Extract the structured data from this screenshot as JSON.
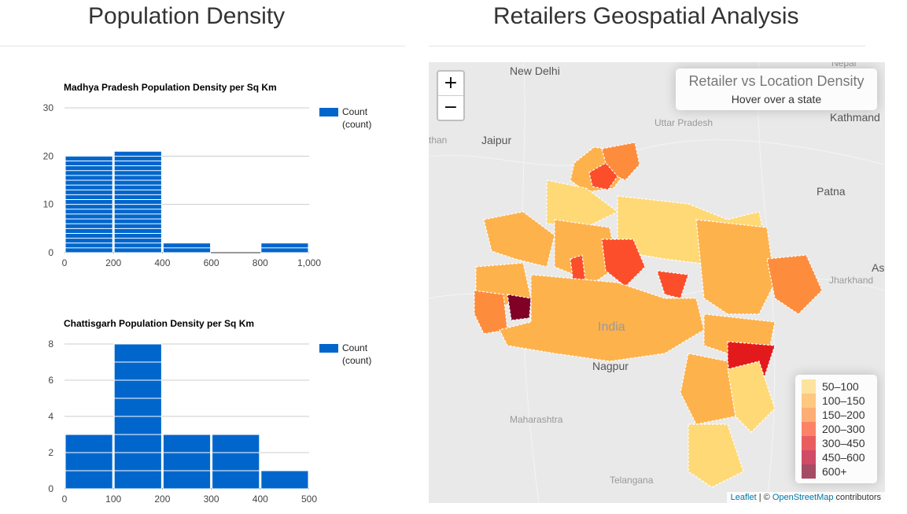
{
  "left_title": "Population Density",
  "right_title": "Retailers Geospatial Analysis",
  "chart_data": [
    {
      "type": "bar",
      "title": "Madhya Pradesh Population Density per Sq Km",
      "bins": [
        [
          0,
          200
        ],
        [
          200,
          400
        ],
        [
          400,
          600
        ],
        [
          600,
          800
        ],
        [
          800,
          1000
        ]
      ],
      "values": [
        20,
        21,
        2,
        0,
        2
      ],
      "xticks": [
        "0",
        "200",
        "400",
        "600",
        "800",
        "1,000"
      ],
      "yticks": [
        "0",
        "10",
        "20",
        "30"
      ],
      "xlim": [
        0,
        1000
      ],
      "ylim": [
        0,
        30
      ],
      "legend": {
        "label": "Count",
        "sub": "(count)",
        "color": "#0066cc",
        "placement": "right"
      },
      "grid": true
    },
    {
      "type": "bar",
      "title": "Chattisgarh Population Density per Sq Km",
      "bins": [
        [
          0,
          100
        ],
        [
          100,
          200
        ],
        [
          200,
          300
        ],
        [
          300,
          400
        ],
        [
          400,
          500
        ]
      ],
      "values": [
        3,
        8,
        3,
        3,
        1
      ],
      "xticks": [
        "0",
        "100",
        "200",
        "300",
        "400",
        "500"
      ],
      "yticks": [
        "0",
        "2",
        "4",
        "6",
        "8"
      ],
      "xlim": [
        0,
        500
      ],
      "ylim": [
        0,
        8
      ],
      "legend": {
        "label": "Count",
        "sub": "(count)",
        "color": "#0066cc",
        "placement": "right"
      },
      "grid": true
    }
  ],
  "map": {
    "zoom_in": "+",
    "zoom_out": "−",
    "info_title": "Retailer vs Location Density",
    "info_sub": "Hover over a state",
    "places": [
      "New Delhi",
      "Jaipur",
      "Patna",
      "Nagpur",
      "Kathmand",
      "Uttar Pradesh",
      "Jharkhand",
      "India",
      "Maharashtra",
      "Telangana",
      "Nepal",
      "As",
      "than"
    ],
    "legend": [
      {
        "label": "50–100",
        "color": "#FED976"
      },
      {
        "label": "100–150",
        "color": "#FEB24C"
      },
      {
        "label": "150–200",
        "color": "#FD8D3C"
      },
      {
        "label": "200–300",
        "color": "#FC4E2A"
      },
      {
        "label": "300–450",
        "color": "#E31A1C"
      },
      {
        "label": "450–600",
        "color": "#BD0026"
      },
      {
        "label": "600+",
        "color": "#800026"
      }
    ],
    "attribution": {
      "leaflet": "Leaflet",
      "sep": " | © ",
      "osm": "OpenStreetMap",
      "rest": " contributors"
    }
  }
}
